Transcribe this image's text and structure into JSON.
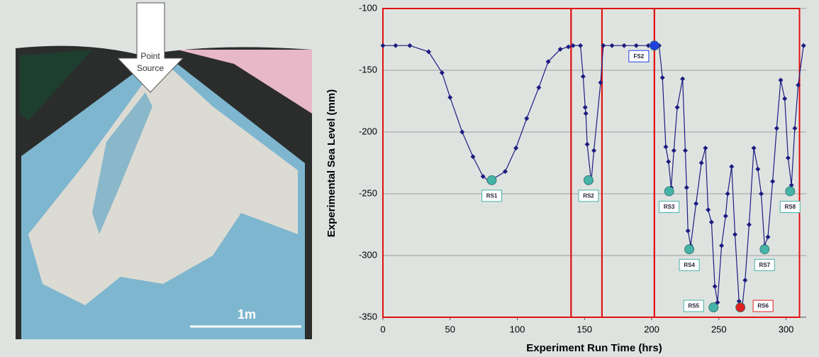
{
  "photo": {
    "arrow_label": [
      "Point",
      "Source"
    ],
    "scale_label": "1m"
  },
  "chart_data": {
    "type": "line",
    "x_label": "Experiment Run Time (hrs)",
    "y_label": "Experimental Sea Level (mm)",
    "xlim": [
      0,
      315
    ],
    "xticks": [
      0,
      50,
      100,
      150,
      200,
      250,
      300
    ],
    "ylim": [
      -350,
      -100
    ],
    "yticks": [
      -350,
      -300,
      -250,
      -200,
      -150,
      -100
    ],
    "grid": true,
    "series": [
      {
        "color": "#1c1c80",
        "x": [
          0,
          9.5,
          20,
          34,
          44,
          50,
          59,
          67,
          74.5,
          79,
          91,
          99,
          107,
          116,
          123,
          132,
          138,
          141.5,
          147,
          149,
          150.5,
          151,
          152,
          155,
          157,
          162,
          164,
          170.5,
          179.5,
          188.5,
          197.5,
          205.5,
          208,
          210.5,
          212.5,
          214.5,
          216.5,
          219,
          223,
          225,
          226,
          227,
          229,
          233,
          237,
          240,
          242,
          244.5,
          247,
          249,
          252,
          255,
          256.5,
          259.5,
          262,
          265,
          267.5,
          269.5,
          272.5,
          276,
          279,
          281.5,
          284,
          286.5,
          290,
          293,
          296,
          299,
          301.5,
          304,
          306.5,
          309,
          313
        ],
        "values": [
          -130,
          -130,
          -130,
          -135,
          -152,
          -172,
          -200,
          -220,
          -236,
          -240,
          -232,
          -213,
          -189,
          -164,
          -143,
          -133,
          -131,
          -130,
          -130,
          -155,
          -180,
          -185,
          -210,
          -240,
          -215,
          -160,
          -130,
          -130,
          -130,
          -130,
          -130,
          -130,
          -156,
          -212,
          -224,
          -245,
          -215,
          -180,
          -157,
          -215,
          -245,
          -280,
          -292,
          -258,
          -225,
          -213,
          -263,
          -273,
          -325,
          -338,
          -292,
          -268,
          -250,
          -228,
          -283,
          -337,
          -340,
          -320,
          -275,
          -213,
          -230,
          -250,
          -292,
          -285,
          -240,
          -197,
          -158,
          -173,
          -221,
          -243,
          -197,
          -162,
          -130
        ]
      }
    ],
    "markers": [
      {
        "name": "RS1",
        "x": 81,
        "y": -239,
        "color": "#45b3a8"
      },
      {
        "name": "RS2",
        "x": 153,
        "y": -239,
        "color": "#45b3a8"
      },
      {
        "name": "FS2",
        "x": 202,
        "y": -130,
        "color": "#1f3fe0"
      },
      {
        "name": "RS3",
        "x": 213,
        "y": -248,
        "color": "#45b3a8"
      },
      {
        "name": "RS4",
        "x": 228,
        "y": -295,
        "color": "#45b3a8"
      },
      {
        "name": "RS5",
        "x": 246,
        "y": -342,
        "color": "#45b3a8"
      },
      {
        "name": "RS6",
        "x": 266,
        "y": -342,
        "color": "#e02020"
      },
      {
        "name": "RS7",
        "x": 284,
        "y": -295,
        "color": "#45b3a8"
      },
      {
        "name": "RS8",
        "x": 303,
        "y": -248,
        "color": "#45b3a8"
      }
    ],
    "regions": {
      "color": "#e01010",
      "x": [
        [
          0,
          140
        ],
        [
          140,
          163
        ],
        [
          163,
          202
        ],
        [
          202,
          310
        ]
      ]
    }
  }
}
